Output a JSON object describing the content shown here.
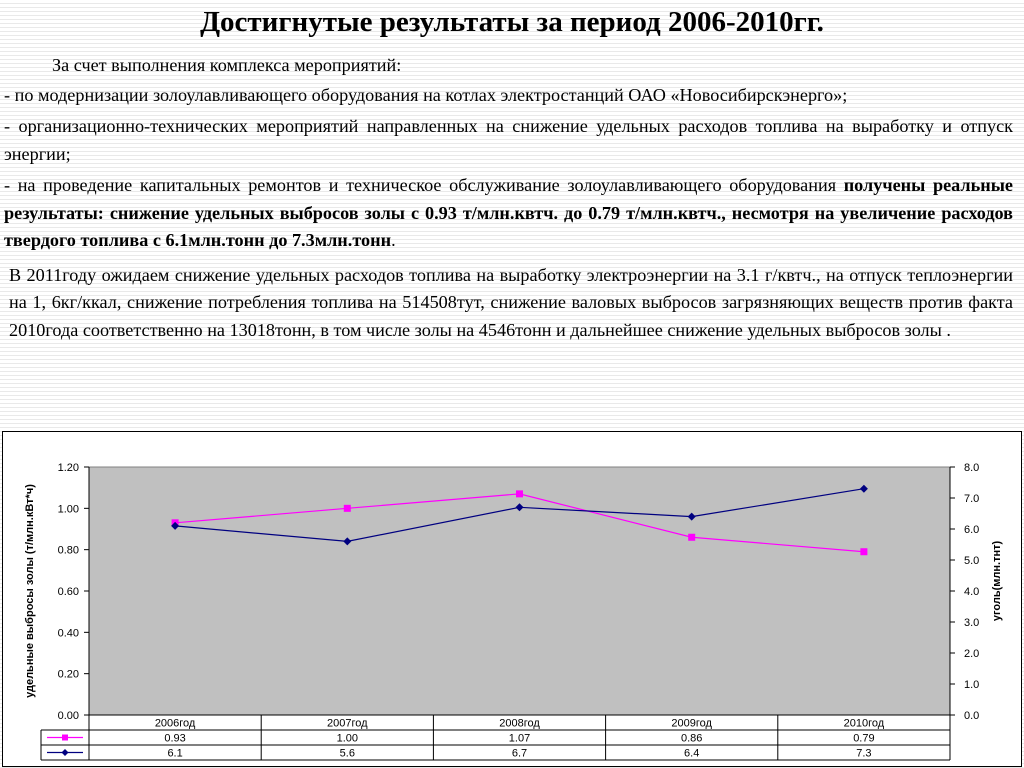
{
  "title": "Достигнутые результаты за период 2006-2010гг.",
  "intro": "За счет выполнения  комплекса мероприятий:",
  "bullet1": "- по модернизации золоулавливающего оборудования на котлах электростанций  ОАО «Новосибирскэнерго»;",
  "bullet2": "- организационно-технических мероприятий направленных  на снижение удельных расходов топлива на выработку и отпуск энергии;",
  "bullet3": {
    "lead": "- на проведение капитальных ремонтов и техническое обслуживание золоулавливающего оборудования ",
    "bold": "получены реальные результаты: снижение удельных выбросов золы с 0.93 т/млн.квтч.  до 0.79 т/млн.квтч., несмотря на  увеличение  расходов твердого топлива с 6.1млн.тонн до 7.3млн.тонн",
    "end": "."
  },
  "p2011": "В 2011году  ожидаем снижение удельных расходов топлива на выработку электроэнергии на 3.1 г/квтч., на отпуск  теплоэнергии на 1, 6кг/ккал, снижение потребления топлива на 514508тут, снижение валовых выбросов загрязняющих веществ против факта  2010года соответственно на 13018тонн, в том числе золы на 4546тонн и дальнейшее снижение удельных выбросов золы .",
  "chart_data": {
    "type": "line",
    "categories": [
      "2006год",
      "2007год",
      "2008год",
      "2009год",
      "2010год"
    ],
    "series": [
      {
        "name": "",
        "axis": "left",
        "color": "#ff00ff",
        "marker": "square",
        "values": [
          0.93,
          1.0,
          1.07,
          0.86,
          0.79
        ],
        "labels": [
          "0.93",
          "1.00",
          "1.07",
          "0.86",
          "0.79"
        ]
      },
      {
        "name": "",
        "axis": "right",
        "color": "#000080",
        "marker": "diamond",
        "values": [
          6.1,
          5.6,
          6.7,
          6.4,
          7.3
        ],
        "labels": [
          "6.1",
          "5.6",
          "6.7",
          "6.4",
          "7.3"
        ]
      }
    ],
    "ylabel": "удельные выбросы золы (т/млн.кВт*ч)",
    "y2label": "уголь(млн.тнт)",
    "ylim": [
      0,
      1.2
    ],
    "y2lim": [
      0,
      8
    ],
    "yticks": [
      "0.00",
      "0.20",
      "0.40",
      "0.60",
      "0.80",
      "1.00",
      "1.20"
    ],
    "y2ticks": [
      "0.0",
      "1.0",
      "2.0",
      "3.0",
      "4.0",
      "5.0",
      "6.0",
      "7.0",
      "8.0"
    ],
    "plot_background": "#c0c0c0",
    "data_table": true
  }
}
